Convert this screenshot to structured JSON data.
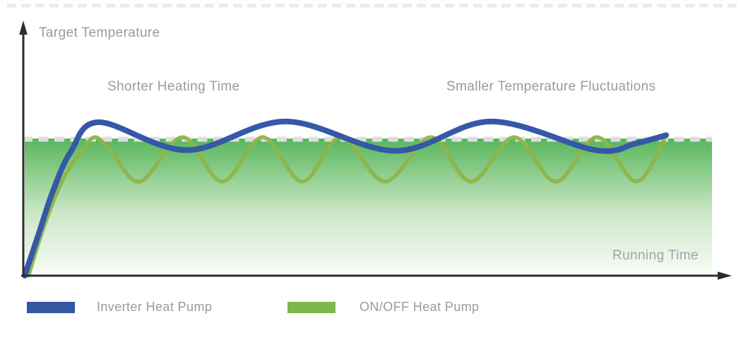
{
  "page": {
    "background": "#ffffff",
    "axis_color": "#2d2d2d"
  },
  "chart_data": {
    "type": "line",
    "title": "",
    "xlabel": "Running Time",
    "ylabel": "Target Temperature",
    "x_axis": {
      "label": "Running Time",
      "range": [
        0,
        100
      ],
      "ticks": "none"
    },
    "y_axis": {
      "label": "Target Temperature",
      "range": [
        0,
        120
      ],
      "ticks": "none",
      "target_level": 100
    },
    "grid": false,
    "units": {
      "x": "percent of shown running time",
      "y": "percent of target temperature"
    },
    "annotations": [
      {
        "text": "Shorter Heating Time"
      },
      {
        "text": "Smaller Temperature Fluctuations"
      }
    ],
    "target_line": {
      "level": 100,
      "style": "dashed",
      "color": "#dedede"
    },
    "top_border_line": {
      "style": "dashed",
      "color": "#eaeaea"
    },
    "fill": {
      "area": "rectangle under target temperature line",
      "gradient": [
        "#58b65b",
        "#cbe7c7",
        "#f8fcf6"
      ],
      "gradient_offsets": [
        0,
        0.55,
        1
      ]
    },
    "series": [
      {
        "name": "Inverter Heat Pump",
        "color": "#3558a7",
        "stroke_width": 8,
        "behavior": "fast rise, small oscillation around target",
        "points": [
          [
            0,
            0
          ],
          [
            2.2,
            31
          ],
          [
            4.4,
            62
          ],
          [
            7.2,
            91
          ],
          [
            11.6,
            112.5
          ],
          [
            25.3,
            92
          ],
          [
            40.7,
            113
          ],
          [
            57.8,
            91.5
          ],
          [
            72.7,
            113
          ],
          [
            89,
            92
          ],
          [
            95.3,
            97
          ],
          [
            100,
            103
          ]
        ]
      },
      {
        "name": "ON/OFF Heat Pump",
        "color": "#8fb448",
        "stroke_width": 5.5,
        "behavior": "slower rise, large repeated oscillation below target",
        "points": [
          [
            0.6,
            0
          ],
          [
            3,
            36
          ],
          [
            6,
            71
          ],
          [
            9,
            92
          ],
          [
            11,
            101.5
          ],
          [
            13.5,
            91
          ],
          [
            18,
            69
          ],
          [
            24.6,
            101.5
          ],
          [
            30.8,
            69
          ],
          [
            37.1,
            101.5
          ],
          [
            43.3,
            69
          ],
          [
            49.3,
            101.5
          ],
          [
            56.2,
            69
          ],
          [
            63.3,
            101.5
          ],
          [
            69.6,
            69
          ],
          [
            76.3,
            101.5
          ],
          [
            82.8,
            69
          ],
          [
            89.2,
            101.5
          ],
          [
            95.3,
            69
          ],
          [
            99.7,
            100
          ]
        ]
      }
    ],
    "legend": {
      "position": "bottom-left",
      "entries": [
        {
          "label": "Inverter Heat Pump",
          "color": "#3457a2"
        },
        {
          "label": "ON/OFF Heat Pump",
          "color": "#7db84c"
        }
      ]
    }
  }
}
